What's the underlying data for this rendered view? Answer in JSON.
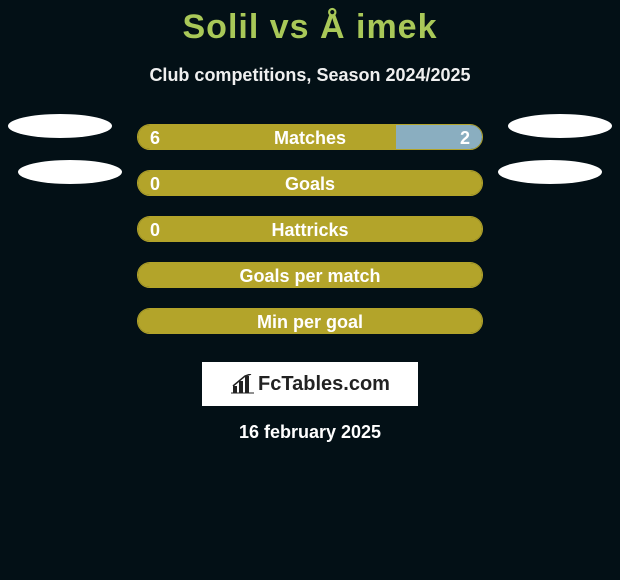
{
  "title": {
    "text": "Solil vs Å imek",
    "color": "#a9c858"
  },
  "subtitle": "Club competitions, Season 2024/2025",
  "colors": {
    "bar_fill": "#b3a42a",
    "bar_border": "#b3a42a",
    "right_accent": "#8aaec0",
    "background": "#031016",
    "ellipse": "#ffffff"
  },
  "rows": [
    {
      "label": "Matches",
      "left_value": "6",
      "right_value": "2",
      "left_pct": 75,
      "right_pct": 25,
      "show_right_accent": true,
      "show_values": true,
      "ellipse_class": "e1"
    },
    {
      "label": "Goals",
      "left_value": "0",
      "right_value": null,
      "left_pct": 100,
      "right_pct": 0,
      "show_right_accent": false,
      "show_values": true,
      "ellipse_class": "e2"
    },
    {
      "label": "Hattricks",
      "left_value": "0",
      "right_value": null,
      "left_pct": 100,
      "right_pct": 0,
      "show_right_accent": false,
      "show_values": true,
      "ellipse_class": null
    },
    {
      "label": "Goals per match",
      "left_value": null,
      "right_value": null,
      "left_pct": 100,
      "right_pct": 0,
      "show_right_accent": false,
      "show_values": false,
      "ellipse_class": null
    },
    {
      "label": "Min per goal",
      "left_value": null,
      "right_value": null,
      "left_pct": 100,
      "right_pct": 0,
      "show_right_accent": false,
      "show_values": false,
      "ellipse_class": null
    }
  ],
  "logo": {
    "text": "FcTables.com"
  },
  "date": "16 february 2025"
}
